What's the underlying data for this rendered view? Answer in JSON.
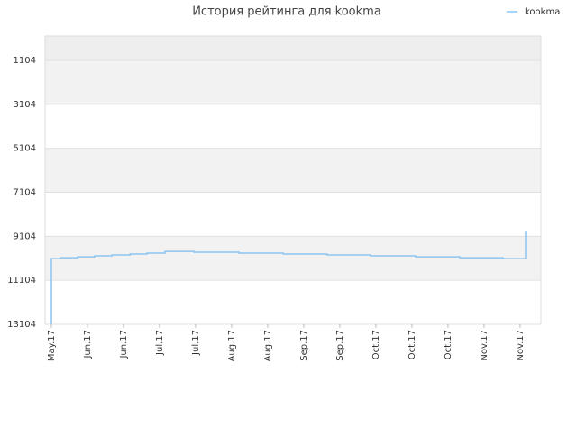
{
  "chart_data": {
    "type": "line",
    "title": "История рейтинга для kookma",
    "x": [
      0,
      0,
      0.25,
      0.25,
      0.73,
      0.73,
      1.2,
      1.2,
      1.68,
      1.68,
      2.18,
      2.18,
      2.65,
      2.65,
      3.15,
      3.15,
      3.95,
      3.95,
      5.2,
      5.2,
      6.43,
      6.43,
      7.65,
      7.65,
      8.85,
      8.85,
      10.1,
      10.1,
      11.33,
      11.33,
      12.53,
      12.53,
      13.15,
      13.15
    ],
    "series": [
      {
        "name": "kookma",
        "color": "#8cc4f0",
        "values": [
          13104,
          10120,
          10120,
          10080,
          10080,
          10040,
          10040,
          9990,
          9990,
          9950,
          9950,
          9910,
          9910,
          9870,
          9870,
          9790,
          9790,
          9830,
          9830,
          9870,
          9870,
          9910,
          9910,
          9950,
          9950,
          9990,
          9990,
          10040,
          10040,
          10080,
          10080,
          10120,
          10120,
          8850
        ]
      }
    ],
    "xlim": [
      -0.175,
      13.575
    ],
    "xticks": [
      {
        "value": 0,
        "label": "May.17"
      },
      {
        "value": 1,
        "label": "Jun.17"
      },
      {
        "value": 2,
        "label": "Jun.17"
      },
      {
        "value": 3,
        "label": "Jul.17"
      },
      {
        "value": 4,
        "label": "Jul.17"
      },
      {
        "value": 5,
        "label": "Aug.17"
      },
      {
        "value": 6,
        "label": "Aug.17"
      },
      {
        "value": 7,
        "label": "Sep.17"
      },
      {
        "value": 8,
        "label": "Sep.17"
      },
      {
        "value": 9,
        "label": "Oct.17"
      },
      {
        "value": 10,
        "label": "Oct.17"
      },
      {
        "value": 11,
        "label": "Oct.17"
      },
      {
        "value": 12,
        "label": "Nov.17"
      },
      {
        "value": 13,
        "label": "Nov.17"
      }
    ],
    "ylim": [
      13104,
      0
    ],
    "yticks": [
      1104,
      3104,
      5104,
      7104,
      9104,
      11104,
      13104
    ],
    "grid": true
  }
}
